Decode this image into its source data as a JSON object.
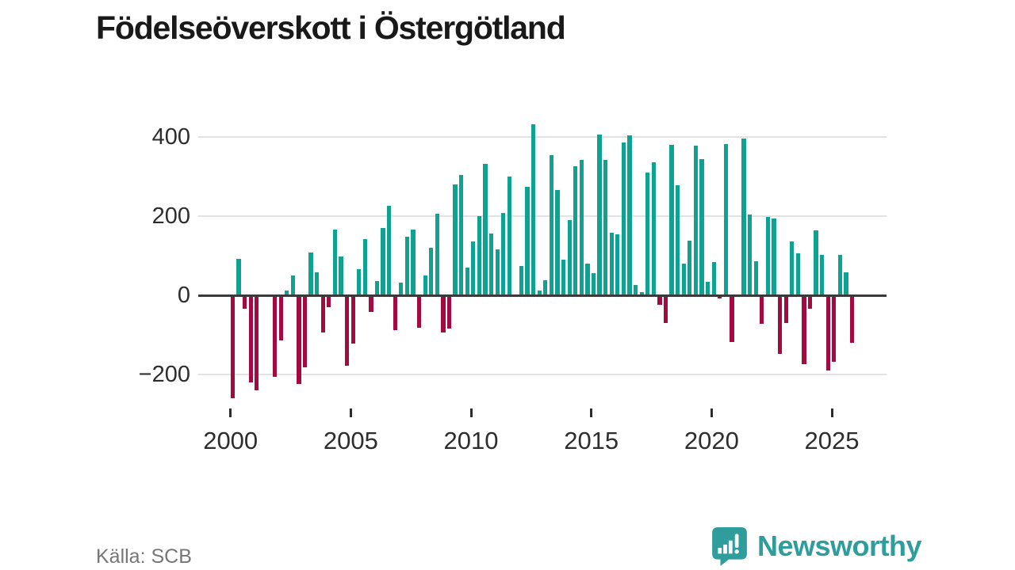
{
  "title": "Födelseöverskott i Östergötland",
  "source": "Källa: SCB",
  "brand": {
    "name": "Newsworthy",
    "icon": "newsworthy-speech-bubble-chart-icon"
  },
  "colors": {
    "positive": "#0da292",
    "negative": "#a40940",
    "grid": "#e2e2e2",
    "zero_axis": "#3a3a3a",
    "axis_text": "#2d2d2d",
    "title_text": "#191919",
    "source_text": "#767676",
    "brand_teal": "#2f9d9b"
  },
  "chart_data": {
    "type": "bar",
    "title": "Födelseöverskott i Östergötland",
    "xlabel": "",
    "ylabel": "",
    "frequency": "quarterly",
    "start_period": "2000 Q1",
    "end_period": "2025 Q4",
    "yticks": [
      -200,
      0,
      200,
      400
    ],
    "ylim": [
      -280,
      460
    ],
    "xticks": [
      2000,
      2005,
      2010,
      2015,
      2020,
      2025
    ],
    "grid": "horizontal",
    "legend": "none",
    "values": [
      -260,
      93,
      -33,
      -220,
      -239,
      0,
      0,
      -206,
      -114,
      13,
      51,
      -223,
      -181,
      109,
      59,
      -94,
      -29,
      167,
      99,
      -177,
      -121,
      67,
      143,
      -41,
      36,
      171,
      227,
      -87,
      33,
      149,
      166,
      -81,
      51,
      121,
      206,
      -94,
      -84,
      281,
      304,
      71,
      137,
      201,
      333,
      157,
      116,
      209,
      301,
      0,
      74,
      274,
      433,
      13,
      39,
      355,
      266,
      91,
      191,
      327,
      343,
      81,
      57,
      406,
      343,
      159,
      154,
      386,
      404,
      27,
      9,
      311,
      337,
      -23,
      -70,
      381,
      279,
      81,
      139,
      379,
      344,
      34,
      84,
      -7,
      383,
      -117,
      0,
      397,
      204,
      87,
      -71,
      199,
      194,
      -147,
      -69,
      137,
      106,
      -173,
      -33,
      164,
      103,
      -189,
      -167,
      103,
      59,
      -119
    ]
  }
}
